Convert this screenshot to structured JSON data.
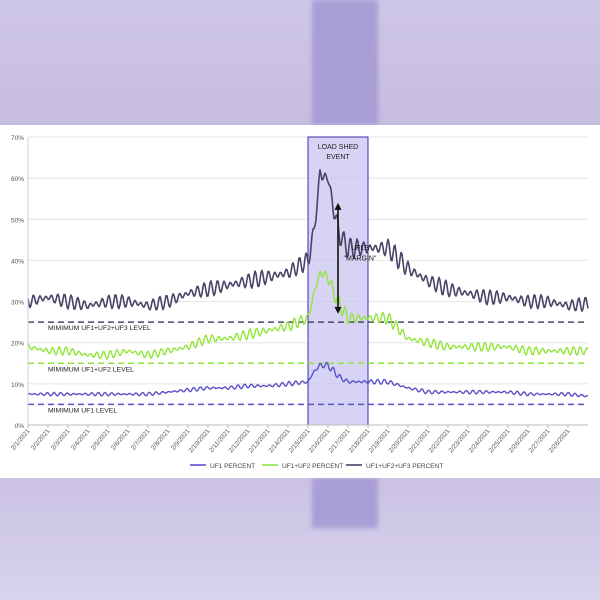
{
  "chart_data": {
    "type": "line",
    "title": "",
    "xlabel": "",
    "ylabel": "",
    "ylim": [
      0,
      70
    ],
    "yticks": [
      "0%",
      "10%",
      "20%",
      "30%",
      "40%",
      "50%",
      "60%",
      "70%"
    ],
    "x_tick_labels": [
      "2/1/2021",
      "2/2/2021",
      "2/3/2021",
      "2/4/2021",
      "2/5/2021",
      "2/6/2021",
      "2/7/2021",
      "2/8/2021",
      "2/9/2021",
      "2/10/2021",
      "2/11/2021",
      "2/12/2021",
      "2/13/2021",
      "2/14/2021",
      "2/15/2021",
      "2/16/2021",
      "2/17/2021",
      "2/18/2021",
      "2/19/2021",
      "2/20/2021",
      "2/21/2021",
      "2/22/2021",
      "2/23/2021",
      "2/24/2021",
      "2/25/2021",
      "2/26/2021",
      "2/27/2021",
      "2/28/2021"
    ],
    "grid": true,
    "legend_position": "bottom",
    "colors": {
      "uf1": "#5b52c6",
      "uf12": "#92e63a",
      "uf123": "#4a4568",
      "band_fill": "#c9c4f0",
      "band_stroke": "#3b2fa8"
    },
    "series": [
      {
        "name": "UF1 PERCENT",
        "color": "#5b52c6",
        "x": [
          1,
          2,
          3,
          4,
          5,
          6,
          7,
          8,
          9,
          10,
          11,
          12,
          13,
          14,
          15,
          15.3,
          15.6,
          16,
          16.3,
          16.6,
          17,
          17.5,
          18,
          19,
          20,
          21,
          22,
          23,
          24,
          25,
          26,
          27,
          28,
          29
        ],
        "y": [
          7.5,
          7.5,
          7.5,
          7.5,
          7.5,
          7.5,
          7.5,
          8,
          8.5,
          9,
          9,
          9.5,
          9.5,
          10,
          10.5,
          13,
          14.5,
          14.5,
          13,
          11.5,
          10.5,
          10.5,
          10.5,
          10.5,
          9,
          8,
          8,
          8,
          8,
          8,
          7.5,
          7.5,
          7.5,
          7
        ]
      },
      {
        "name": "UF1+UF2 PERCENT",
        "color": "#92e63a",
        "x": [
          1,
          2,
          3,
          4,
          5,
          6,
          7,
          8,
          9,
          10,
          11,
          12,
          13,
          14,
          15,
          15.3,
          15.6,
          16,
          16.3,
          16.6,
          17,
          17.5,
          18,
          19,
          20,
          21,
          22,
          23,
          24,
          25,
          26,
          27,
          28,
          29
        ],
        "y": [
          19,
          18,
          18,
          17,
          17,
          18,
          17,
          18,
          19,
          21,
          21,
          22,
          23,
          24,
          26,
          32,
          37,
          36,
          32,
          29,
          26,
          26,
          26,
          26,
          21,
          20,
          19,
          19,
          19,
          19,
          18,
          18,
          18,
          18
        ]
      },
      {
        "name": "UF1+UF2+UF3 PERCENT",
        "color": "#4a4568",
        "x": [
          1,
          2,
          3,
          4,
          5,
          6,
          7,
          8,
          9,
          10,
          11,
          12,
          13,
          14,
          15,
          15.3,
          15.6,
          16,
          16.3,
          16.6,
          17,
          17.5,
          18,
          19,
          20,
          21,
          22,
          23,
          24,
          25,
          26,
          27,
          28,
          29
        ],
        "y": [
          30,
          31,
          30,
          29,
          30,
          30,
          29,
          30,
          32,
          33,
          34,
          35,
          36,
          37,
          40,
          47,
          61,
          60,
          52,
          46,
          43,
          43,
          43,
          43,
          38,
          35,
          33,
          32,
          31,
          31,
          30,
          30,
          29,
          29.5
        ]
      }
    ],
    "reference_lines": [
      {
        "label": "MIMIMUM UF1+UF2+UF3 LEVEL",
        "y": 25,
        "color": "#4a4568"
      },
      {
        "label": "MIMIMUM UF1+UF2 LEVEL",
        "y": 15,
        "color": "#92e63a"
      },
      {
        "label": "MIMIMUM UF1 LEVEL",
        "y": 5,
        "color": "#5b52c6"
      }
    ],
    "shaded_region": {
      "x_start": 15,
      "x_end": 18,
      "label": "LOAD SHED EVENT"
    },
    "annotation": {
      "label_1": "UFLS",
      "label_2": "\"MARGIN\"",
      "arrow_x": 16.5,
      "y_low": 27,
      "y_high": 54
    }
  }
}
